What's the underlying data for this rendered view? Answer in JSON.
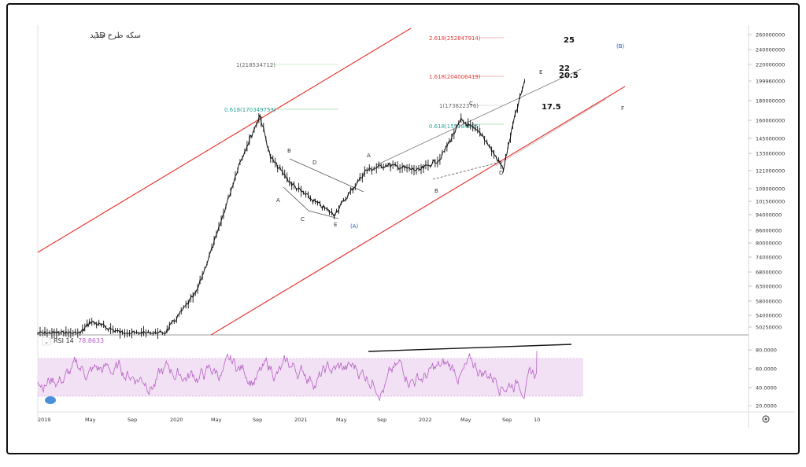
{
  "header": {
    "interval": "1D",
    "symbol_name": "سکه طرح جدید"
  },
  "rsi": {
    "label": "RSI 14",
    "value": "78.8633",
    "ticks": [
      "80.0000",
      "60.0000",
      "40.0000",
      "20.0000"
    ]
  },
  "price_axis": [
    "260000000",
    "240000000",
    "220000000",
    "199960000",
    "180000000",
    "160000000",
    "145000000",
    "133000000",
    "121000000",
    "109000000",
    "101500000",
    "94000000",
    "86000000",
    "80000000",
    "74000000",
    "68000000",
    "63000000",
    "58000000",
    "54000000",
    "50250000"
  ],
  "time_axis": [
    "2019",
    "May",
    "Sep",
    "2020",
    "May",
    "Sep",
    "2021",
    "May",
    "Sep",
    "2022",
    "May",
    "Sep",
    "10"
  ],
  "fib_labels": {
    "f2618": "2.618(252847914)",
    "f1_top": "1(218534712)",
    "f1618": "1.618(204006419)",
    "f0618_left": "0.618(170349753)",
    "f1_mid": "1(173822376)",
    "f0618_right": "0.618(155184925)"
  },
  "wave_labels": {
    "a1": "A",
    "b1": "B",
    "c1": "C",
    "d1": "D",
    "e1": "E",
    "paren_a": "(A)",
    "a2": "A",
    "b2": "B",
    "c2": "C",
    "d2": "D",
    "e2": "E",
    "paren_b": "(B)",
    "f": "F"
  },
  "targets": [
    "25",
    "22",
    "20.5",
    "17.5"
  ],
  "colors": {
    "channel": "#e53935",
    "fib_red": "#e53935",
    "fib_green": "#26a69a",
    "rsi_line": "#b560c4",
    "rsi_band": "#f2e1f4",
    "price_bars": "#111111",
    "wave_label_blue": "#1e5fbf"
  },
  "chart_data": {
    "type": "candlestick",
    "title": "سکه طرح جدید",
    "interval": "1D",
    "price_axis_ticks": [
      260000000,
      240000000,
      220000000,
      199960000,
      180000000,
      160000000,
      145000000,
      133000000,
      121000000,
      109000000,
      101500000,
      94000000,
      86000000,
      80000000,
      74000000,
      68000000,
      63000000,
      58000000,
      54000000,
      50250000
    ],
    "price_path": {
      "x": [
        "2019-01",
        "2019-05",
        "2019-06",
        "2019-09",
        "2020-01",
        "2020-04",
        "2020-06",
        "2020-08",
        "2020-10",
        "2020-11",
        "2021-01",
        "2021-03",
        "2021-05",
        "2021-08",
        "2021-10",
        "2022-01",
        "2022-03",
        "2022-05",
        "2022-07",
        "2022-09",
        "2022-10",
        "2022-11"
      ],
      "y": [
        44000000,
        48000000,
        52000000,
        45000000,
        46000000,
        61000000,
        85000000,
        125000000,
        165000000,
        130000000,
        112000000,
        102000000,
        94000000,
        121000000,
        125000000,
        121000000,
        129000000,
        160000000,
        148000000,
        122000000,
        160000000,
        200000000
      ]
    },
    "rsi": {
      "name": "RSI 14",
      "last": 78.8633,
      "ylim": [
        20,
        80
      ],
      "band": [
        30,
        70
      ]
    },
    "channel": "ascending",
    "annotations": [
      "2.618(252847914)",
      "1(218534712)",
      "1.618(204006419)",
      "0.618(170349753)",
      "1(173822376)",
      "0.618(155184925)",
      "25",
      "22",
      "20.5",
      "17.5",
      "(A)",
      "(B)",
      "F"
    ]
  }
}
